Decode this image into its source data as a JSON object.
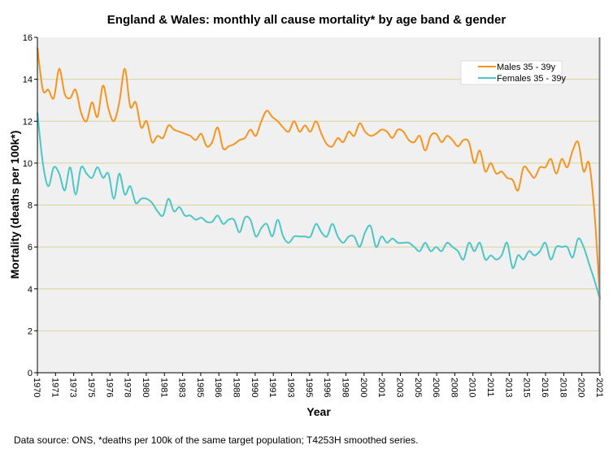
{
  "chart_data": {
    "type": "line",
    "title": "England & Wales: monthly all cause mortality* by age band & gender",
    "xlabel": "Year",
    "ylabel": "Mortality (deaths per 100k*)",
    "ylim": [
      0,
      16
    ],
    "xlim": [
      1970,
      2021.5
    ],
    "yticks": [
      "0",
      "2",
      "4",
      "6",
      "8",
      "10",
      "12",
      "14",
      "16"
    ],
    "xticks": [
      "1970",
      "1971",
      "1973",
      "1975",
      "1976",
      "1978",
      "1980",
      "1981",
      "1983",
      "1985",
      "1986",
      "1988",
      "1990",
      "1991",
      "1993",
      "1995",
      "1996",
      "1998",
      "2000",
      "2001",
      "2003",
      "2005",
      "2006",
      "2008",
      "2010",
      "2011",
      "2013",
      "2015",
      "2016",
      "2018",
      "2020",
      "2021"
    ],
    "grid": "horizontal",
    "legend_position": "top-right",
    "x_start": 1970,
    "x_step": 0.5,
    "series": [
      {
        "name": "Males 35 - 39y",
        "color": "#f7941d",
        "values": [
          15.5,
          13.5,
          13.5,
          13.1,
          14.5,
          13.3,
          13.1,
          13.5,
          12.4,
          12.0,
          12.9,
          12.2,
          13.7,
          12.6,
          12.0,
          12.9,
          14.5,
          12.7,
          12.9,
          11.7,
          12.0,
          11.0,
          11.3,
          11.2,
          11.8,
          11.6,
          11.5,
          11.4,
          11.3,
          11.1,
          11.4,
          10.8,
          11.0,
          11.7,
          10.7,
          10.8,
          10.9,
          11.1,
          11.2,
          11.6,
          11.3,
          12.0,
          12.5,
          12.2,
          12.0,
          11.7,
          11.5,
          12.0,
          11.5,
          11.8,
          11.5,
          12.0,
          11.4,
          10.9,
          10.8,
          11.2,
          11.0,
          11.5,
          11.3,
          11.9,
          11.5,
          11.3,
          11.4,
          11.6,
          11.5,
          11.2,
          11.6,
          11.5,
          11.1,
          11.0,
          11.3,
          10.6,
          11.3,
          11.4,
          11.0,
          11.3,
          11.1,
          10.8,
          11.1,
          11.0,
          10.0,
          10.6,
          9.6,
          10.0,
          9.5,
          9.6,
          9.3,
          9.2,
          8.7,
          9.8,
          9.6,
          9.3,
          9.8,
          9.8,
          10.2,
          9.5,
          10.2,
          9.8,
          10.6,
          11.0,
          9.6,
          10.0,
          7.6,
          3.5
        ]
      },
      {
        "name": "Females 35 - 39y",
        "color": "#4dc6c6",
        "values": [
          12.4,
          10.0,
          8.9,
          9.8,
          9.5,
          8.7,
          9.8,
          8.5,
          9.8,
          9.5,
          9.3,
          9.8,
          9.3,
          9.5,
          8.3,
          9.5,
          8.5,
          8.9,
          8.1,
          8.3,
          8.3,
          8.1,
          7.7,
          7.5,
          8.3,
          7.7,
          7.9,
          7.5,
          7.5,
          7.3,
          7.4,
          7.2,
          7.2,
          7.5,
          7.1,
          7.3,
          7.3,
          6.7,
          7.4,
          7.3,
          6.5,
          6.9,
          7.1,
          6.5,
          7.3,
          6.5,
          6.2,
          6.5,
          6.5,
          6.5,
          6.5,
          7.1,
          6.7,
          6.5,
          7.1,
          6.5,
          6.2,
          6.5,
          6.5,
          6.0,
          6.7,
          7.0,
          6.0,
          6.5,
          6.2,
          6.4,
          6.2,
          6.2,
          6.2,
          6.0,
          5.8,
          6.2,
          5.8,
          6.0,
          5.8,
          6.2,
          6.0,
          5.8,
          5.4,
          6.2,
          5.8,
          6.2,
          5.4,
          5.6,
          5.4,
          5.6,
          6.2,
          5.0,
          5.6,
          5.4,
          5.8,
          5.6,
          5.8,
          6.2,
          5.4,
          6.0,
          6.0,
          6.0,
          5.5,
          6.4,
          6.0,
          5.2,
          4.4,
          3.5
        ]
      }
    ]
  },
  "footer": "Data source: ONS, *deaths per 100k of the same target population; T4253H smoothed series."
}
